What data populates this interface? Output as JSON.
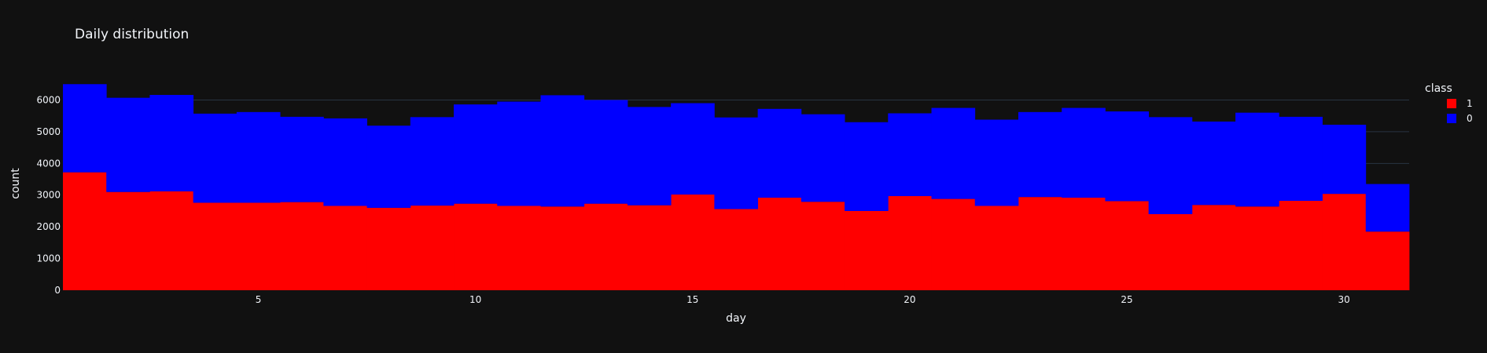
{
  "chart_data": {
    "type": "bar",
    "barmode": "stack",
    "title": "Daily distribution",
    "xlabel": "day",
    "ylabel": "count",
    "xlim": [
      0.5,
      31.5
    ],
    "ylim": [
      0,
      6680
    ],
    "x_ticks": [
      5,
      10,
      15,
      20,
      25,
      30
    ],
    "y_ticks": [
      0,
      1000,
      2000,
      3000,
      4000,
      5000,
      6000
    ],
    "grid": true,
    "background": "#111111",
    "legend": {
      "title": "class",
      "position": "top-right"
    },
    "x": [
      1,
      2,
      3,
      4,
      5,
      6,
      7,
      8,
      9,
      10,
      11,
      12,
      13,
      14,
      15,
      16,
      17,
      18,
      19,
      20,
      21,
      22,
      23,
      24,
      25,
      26,
      27,
      28,
      29,
      30,
      31
    ],
    "series": [
      {
        "name": "1",
        "color": "#ff0000",
        "values": [
          3720,
          3100,
          3120,
          2760,
          2760,
          2780,
          2660,
          2600,
          2670,
          2730,
          2660,
          2640,
          2730,
          2680,
          3020,
          2560,
          2920,
          2790,
          2500,
          2970,
          2880,
          2660,
          2940,
          2920,
          2810,
          2400,
          2690,
          2640,
          2820,
          3040,
          1850
        ]
      },
      {
        "name": "0",
        "color": "#0000ff",
        "values": [
          2780,
          2970,
          3040,
          2810,
          2860,
          2690,
          2760,
          2590,
          2790,
          3130,
          3290,
          3510,
          3270,
          3100,
          2880,
          2890,
          2800,
          2760,
          2800,
          2610,
          2870,
          2720,
          2680,
          2830,
          2830,
          3060,
          2630,
          2960,
          2650,
          2180,
          1500
        ]
      }
    ]
  }
}
